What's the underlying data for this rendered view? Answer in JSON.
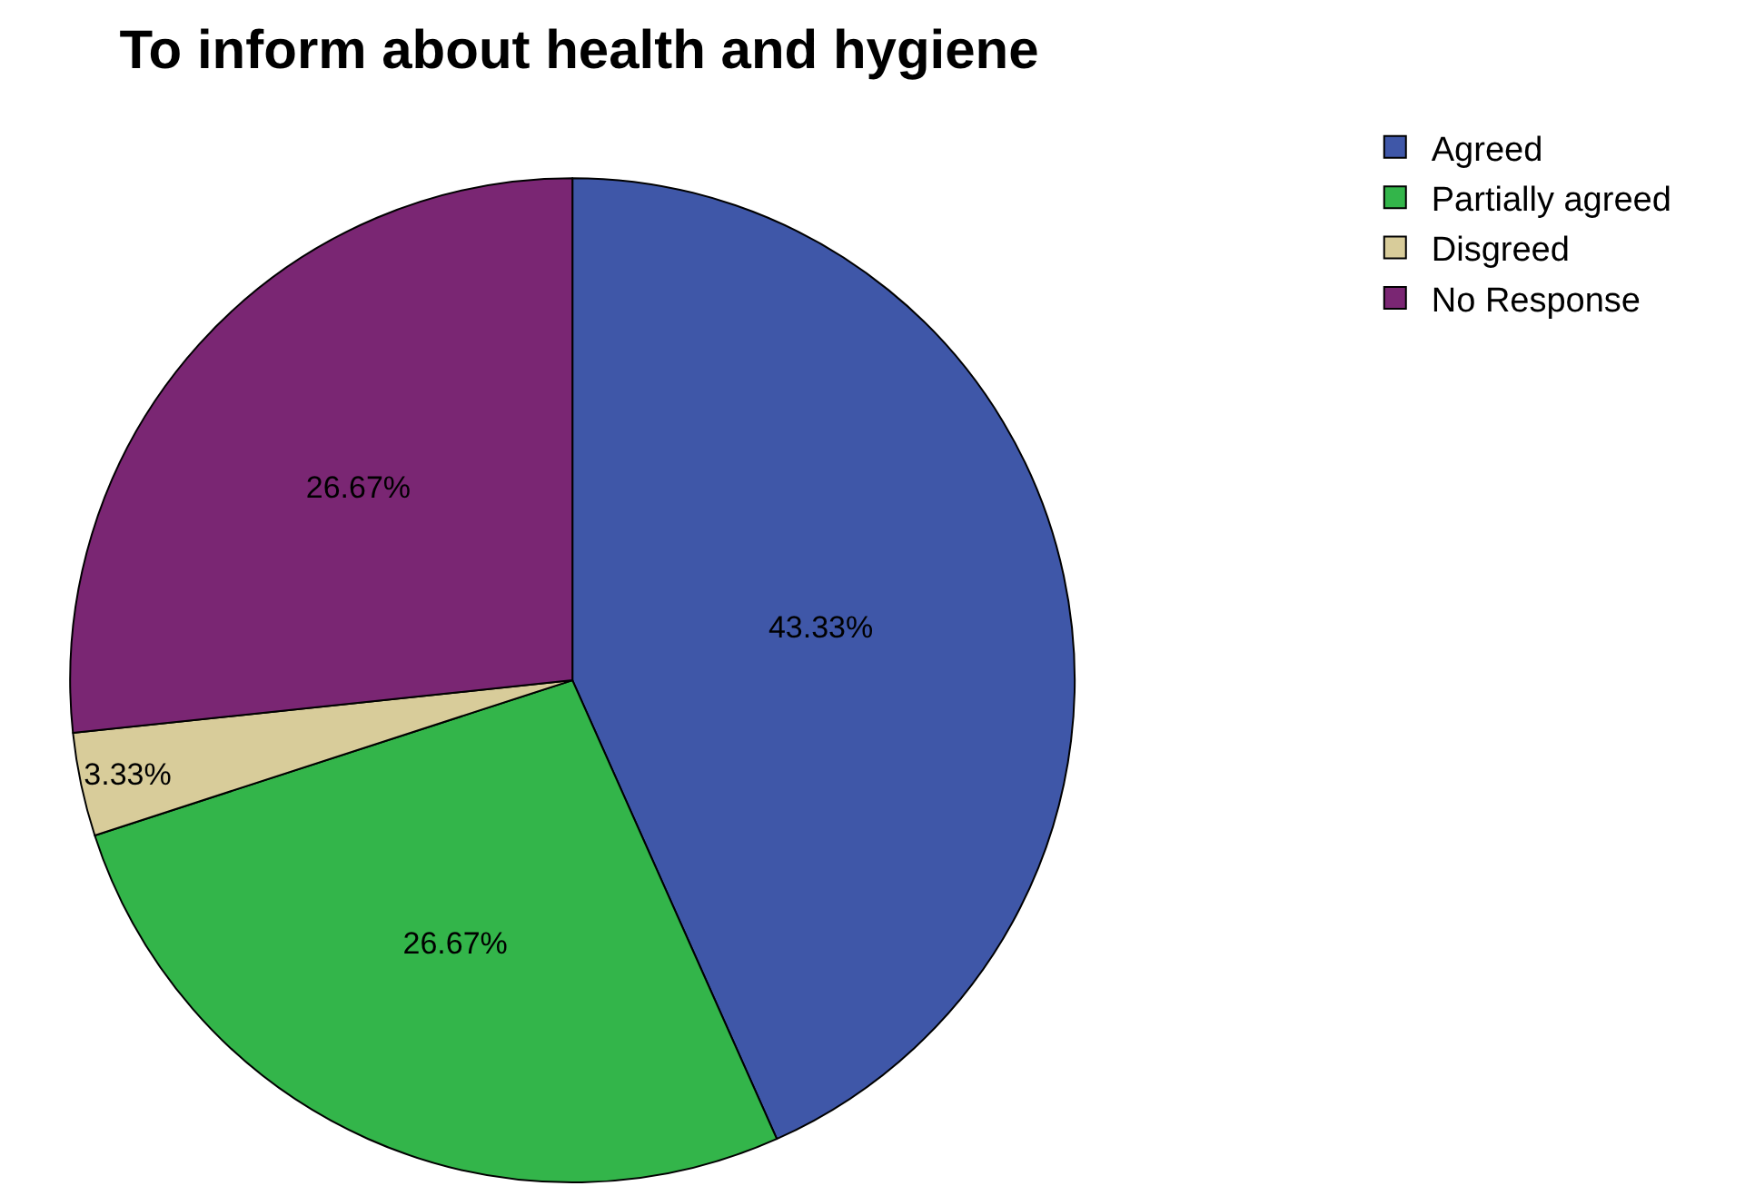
{
  "chart_data": {
    "type": "pie",
    "title": "To inform about health and hygiene",
    "categories": [
      "Agreed",
      "Partially agreed",
      "Disgreed",
      "No Response"
    ],
    "values": [
      43.33,
      26.67,
      3.33,
      26.67
    ],
    "value_labels": [
      "43.33%",
      "26.67%",
      "3.33%",
      "26.67%"
    ],
    "colors": [
      "#3f57a8",
      "#33b54a",
      "#d8cc9a",
      "#7a2673"
    ],
    "legend": "top right"
  }
}
